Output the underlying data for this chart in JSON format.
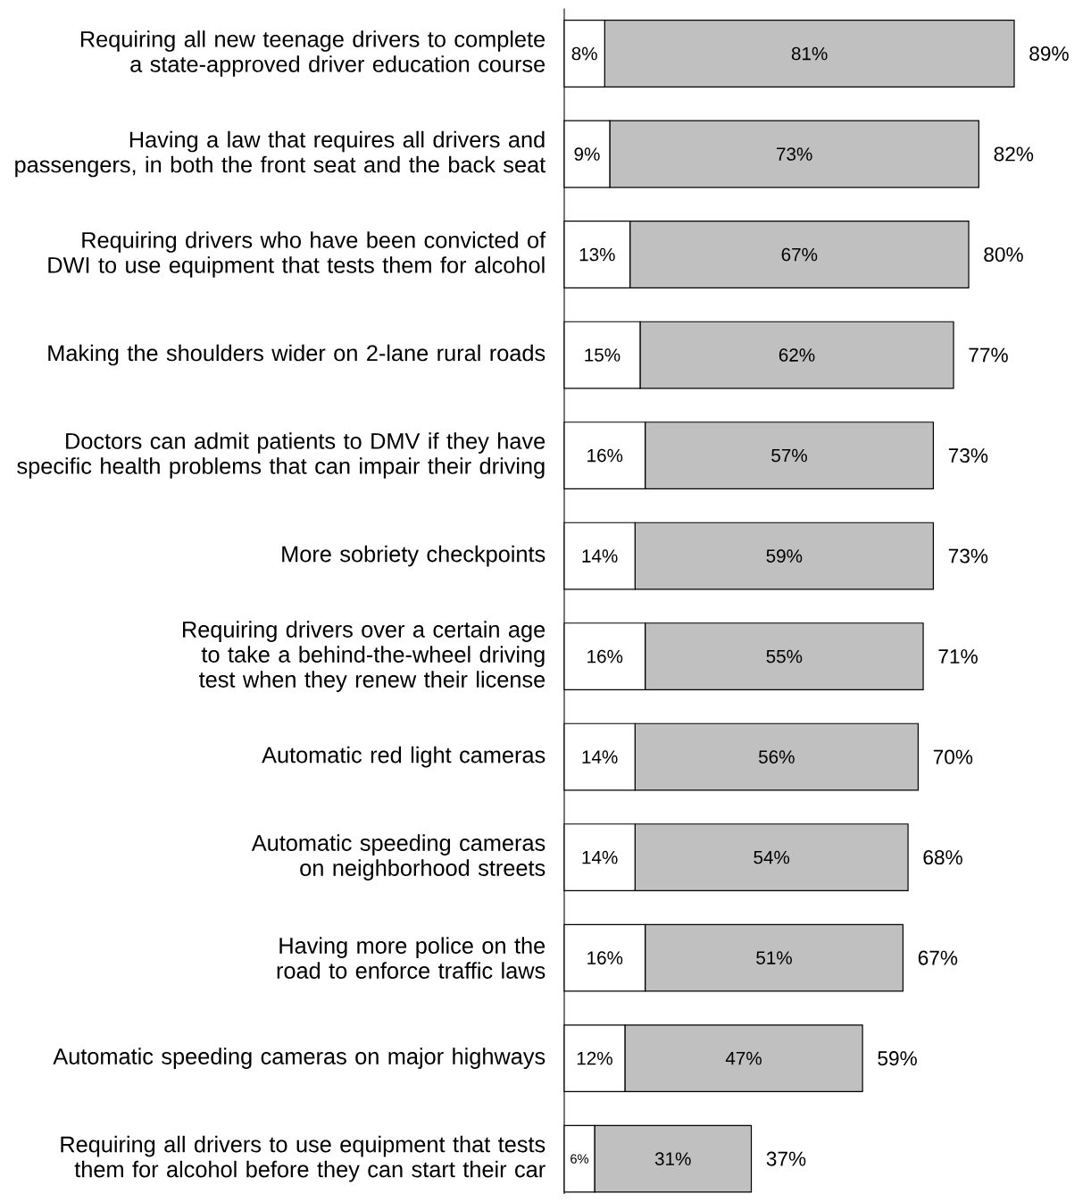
{
  "chart_data": {
    "type": "bar",
    "orientation": "horizontal",
    "stacked": true,
    "categories": [
      "Requiring all new teenage drivers to complete a state-approved driver education course",
      "Having a law that requires all drivers and passengers, in both the front seat and the back seat",
      "Requiring drivers who have been convicted of DWI to use equipment that tests them for alcohol",
      "Making the shoulders wider on 2-lane rural roads",
      "Doctors can admit patients to DMV  if they have specific health problems that can impair their driving",
      "More sobriety checkpoints",
      "Requiring drivers over a certain age to take a behind-the-wheel driving test when they renew their license",
      "Automatic red light cameras",
      "Automatic speeding cameras on neighborhood streets",
      "Having more police on the road to enforce traffic laws",
      "Automatic speeding cameras on major highways",
      "Requiring all drivers to use equipment that tests them for alcohol before they can start their car"
    ],
    "series": [
      {
        "color": "#ffffff",
        "values": [
          8,
          9,
          13,
          15,
          16,
          14,
          16,
          14,
          14,
          16,
          12,
          6
        ],
        "value_labels": [
          "8%",
          "9%",
          "13%",
          "15%",
          "16%",
          "14%",
          "16%",
          "14%",
          "14%",
          "16%",
          "12%",
          "6%"
        ]
      },
      {
        "color": "#c0c0c0",
        "values": [
          81,
          73,
          67,
          62,
          57,
          59,
          55,
          56,
          54,
          51,
          47,
          31
        ],
        "value_labels": [
          "81%",
          "73%",
          "67%",
          "62%",
          "57%",
          "59%",
          "55%",
          "56%",
          "54%",
          "51%",
          "47%",
          "31%"
        ]
      }
    ],
    "totals": [
      "89%",
      "82%",
      "80%",
      "77%",
      "73%",
      "73%",
      "71%",
      "70%",
      "68%",
      "67%",
      "59%",
      "37%"
    ]
  }
}
